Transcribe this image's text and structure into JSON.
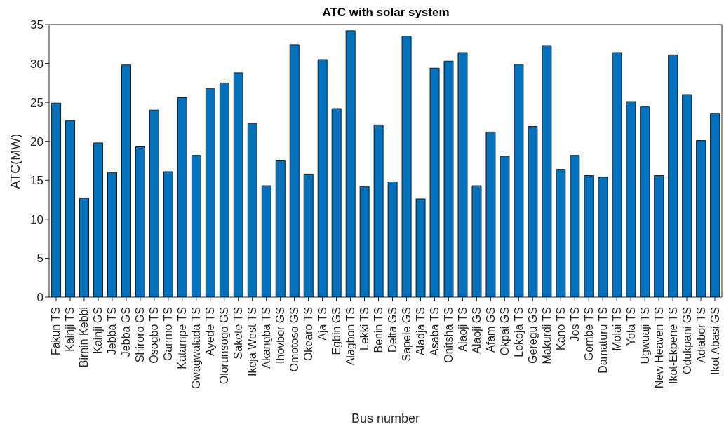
{
  "chart_data": {
    "type": "bar",
    "title": "ATC with solar system",
    "xlabel": "Bus number",
    "ylabel": "ATC(MW)",
    "categories": [
      "Fakun TS",
      "Kainji TS",
      "Birnin Kebbi",
      "Kainji GS",
      "Jebba TS",
      "Jebba GS",
      "Shiroro GS",
      "Osogbo TS",
      "Ganmo TS",
      "Katampe TS",
      "Gwagwalada TS",
      "Ayede TS",
      "Olorunsogo GS",
      "Sakete TS",
      "Ikeja West TS",
      "Akangba TS",
      "Ihovbor GS",
      "Omotoso GS",
      "Okearo TS",
      "Aja TS",
      "Egbin GS",
      "Alagbon TS",
      "Lekki TS",
      "Benin TS",
      "Delta GS",
      "Sapele GS",
      "Aladja TS",
      "Asaba TS",
      "Onitsha TS",
      "Alaoji TS",
      "Alaoji GS",
      "Afam GS",
      "Okpai GS",
      "Lokoja TS",
      "Geregu GS",
      "Makurdi TS",
      "Kano TS",
      "Jos TS",
      "Gombe TS",
      "Damaturu TS",
      "Molai TS",
      "Yola TS",
      "Ugwuaji TS",
      "New Heaven TS",
      "Ikot-Ekpene TS",
      "Odukpani GS",
      "Adiabor TS",
      "Ikot Abasi GS"
    ],
    "values": [
      24.9,
      22.7,
      12.7,
      19.8,
      16.0,
      29.8,
      19.3,
      24.0,
      16.1,
      25.6,
      18.2,
      26.8,
      27.5,
      28.8,
      22.3,
      14.3,
      17.5,
      32.4,
      15.8,
      30.5,
      24.2,
      34.2,
      14.2,
      22.1,
      14.8,
      33.5,
      12.6,
      29.4,
      30.3,
      31.4,
      14.3,
      21.2,
      18.1,
      29.9,
      21.9,
      32.3,
      16.4,
      18.2,
      15.6,
      15.4,
      31.4,
      25.1,
      24.5,
      15.6,
      31.1,
      26.0,
      20.1,
      23.6
    ],
    "color": "#0072bd",
    "ylim": [
      0,
      35
    ],
    "yticks": [
      0,
      5,
      10,
      15,
      20,
      25,
      30,
      35
    ],
    "grid": false
  }
}
